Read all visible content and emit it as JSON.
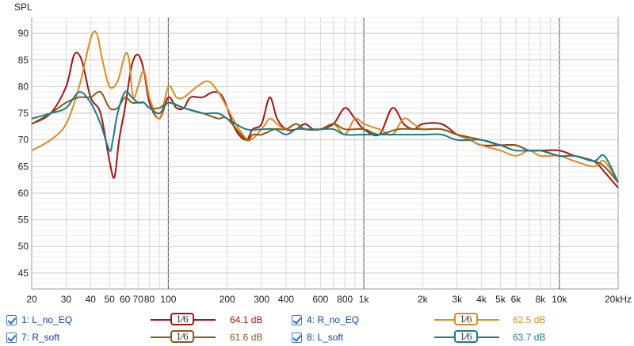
{
  "chart_data": {
    "type": "line",
    "title": "",
    "ylabel": "SPL",
    "xlabel": "",
    "x_scale": "log",
    "xlim": [
      20,
      20000
    ],
    "ylim": [
      42,
      93
    ],
    "grid": true,
    "xticks": [
      {
        "v": 20,
        "l": "20"
      },
      {
        "v": 30,
        "l": "30"
      },
      {
        "v": 40,
        "l": "40"
      },
      {
        "v": 50,
        "l": "50"
      },
      {
        "v": 60,
        "l": "60"
      },
      {
        "v": 70,
        "l": "70"
      },
      {
        "v": 80,
        "l": "80"
      },
      {
        "v": 100,
        "l": "100"
      },
      {
        "v": 200,
        "l": "200"
      },
      {
        "v": 300,
        "l": "300"
      },
      {
        "v": 400,
        "l": "400"
      },
      {
        "v": 600,
        "l": "600"
      },
      {
        "v": 800,
        "l": "800"
      },
      {
        "v": 1000,
        "l": "1k"
      },
      {
        "v": 2000,
        "l": "2k"
      },
      {
        "v": 3000,
        "l": "3k"
      },
      {
        "v": 4000,
        "l": "4k"
      },
      {
        "v": 5000,
        "l": "5k"
      },
      {
        "v": 6000,
        "l": "6k"
      },
      {
        "v": 8000,
        "l": "8k"
      },
      {
        "v": 10000,
        "l": "10k"
      },
      {
        "v": 20000,
        "l": "20kHz"
      }
    ],
    "yticks": [
      45,
      50,
      55,
      60,
      65,
      70,
      75,
      80,
      85,
      90
    ],
    "series": [
      {
        "name": "L_no_EQ",
        "color": "#a31515",
        "x": [
          20,
          25,
          30,
          33,
          36,
          40,
          45,
          50,
          53,
          56,
          60,
          65,
          70,
          75,
          80,
          90,
          100,
          110,
          120,
          130,
          150,
          170,
          190,
          220,
          250,
          270,
          300,
          330,
          360,
          400,
          450,
          500,
          550,
          600,
          700,
          800,
          900,
          1000,
          1200,
          1400,
          1600,
          1800,
          2000,
          2500,
          3000,
          3500,
          4000,
          5000,
          6000,
          7000,
          8000,
          10000,
          12000,
          15000,
          17000,
          20000
        ],
        "y": [
          73,
          75,
          80,
          86,
          85,
          78,
          75,
          66,
          63,
          70,
          76,
          84,
          86,
          83,
          77,
          74,
          78,
          76,
          76,
          78,
          78,
          79,
          78,
          72,
          70,
          72,
          73,
          78,
          74,
          72,
          72,
          73,
          72,
          72,
          73,
          76,
          74,
          72,
          71,
          76,
          73,
          72,
          73,
          73,
          71,
          70,
          69,
          69,
          69,
          68,
          68,
          68,
          67,
          66,
          64,
          61
        ]
      },
      {
        "name": "R_no_EQ",
        "color": "#e08a20",
        "x": [
          20,
          25,
          30,
          35,
          40,
          43,
          46,
          50,
          55,
          60,
          63,
          66,
          70,
          75,
          80,
          90,
          100,
          110,
          120,
          140,
          160,
          180,
          200,
          230,
          260,
          300,
          330,
          360,
          400,
          450,
          500,
          600,
          700,
          800,
          900,
          1000,
          1200,
          1400,
          1600,
          1800,
          2000,
          2500,
          3000,
          4000,
          5000,
          6000,
          7000,
          8000,
          10000,
          12000,
          15000,
          17000,
          20000
        ],
        "y": [
          68,
          70,
          73,
          80,
          89,
          90,
          85,
          80,
          81,
          86,
          85,
          78,
          80,
          83,
          78,
          74,
          80,
          78,
          78,
          80,
          81,
          79,
          76,
          72,
          70,
          72,
          74,
          73,
          72,
          73,
          72,
          72,
          73,
          71,
          74,
          73,
          72,
          71,
          74,
          73,
          72,
          72,
          71,
          69,
          68,
          67,
          68,
          67,
          67,
          66,
          65,
          66,
          62
        ]
      },
      {
        "name": "R_soft",
        "color": "#8a5a16",
        "x": [
          20,
          25,
          30,
          35,
          40,
          45,
          50,
          55,
          60,
          65,
          70,
          75,
          80,
          90,
          100,
          120,
          150,
          180,
          200,
          250,
          270,
          300,
          350,
          400,
          450,
          500,
          600,
          700,
          800,
          1000,
          1200,
          1500,
          2000,
          2500,
          3000,
          4000,
          5000,
          6000,
          7000,
          8000,
          10000,
          12000,
          15000,
          17000,
          20000
        ],
        "y": [
          73,
          75,
          77,
          78,
          78,
          79,
          76,
          76,
          78,
          77,
          77,
          77,
          76,
          76,
          77,
          76,
          75,
          74,
          74,
          70,
          71,
          71,
          72,
          72,
          73,
          72,
          72,
          73,
          72,
          72,
          71,
          72,
          72,
          72,
          71,
          70,
          69,
          69,
          68,
          68,
          67,
          67,
          66,
          65,
          62
        ]
      },
      {
        "name": "L_soft",
        "color": "#1a7d8a",
        "x": [
          20,
          25,
          30,
          35,
          40,
          45,
          50,
          52,
          55,
          60,
          65,
          70,
          75,
          80,
          90,
          100,
          120,
          150,
          180,
          200,
          250,
          300,
          350,
          400,
          450,
          500,
          600,
          700,
          800,
          1000,
          1200,
          1500,
          2000,
          2500,
          3000,
          4000,
          5000,
          6000,
          8000,
          10000,
          12000,
          15000,
          17000,
          20000
        ],
        "y": [
          74,
          75,
          76,
          79,
          77,
          73,
          68,
          70,
          75,
          79,
          78,
          77,
          77,
          76,
          75,
          77,
          76,
          75,
          75,
          74,
          72,
          72,
          72,
          71,
          72,
          72,
          72,
          72,
          71,
          71,
          71,
          71,
          71,
          71,
          70,
          70,
          69,
          68,
          68,
          67,
          67,
          66,
          67,
          62
        ]
      }
    ]
  },
  "legend": [
    {
      "label": "1: L_no_EQ",
      "smoothing": "1⁄6",
      "value": "64.1 dB",
      "color": "#a31515"
    },
    {
      "label": "4: R_no_EQ",
      "smoothing": "1⁄6",
      "value": "62.5 dB",
      "color": "#e08a20"
    },
    {
      "label": "7: R_soft",
      "smoothing": "1⁄6",
      "value": "61.6 dB",
      "color": "#8a5a16"
    },
    {
      "label": "8: L_soft",
      "smoothing": "1⁄6",
      "value": "63.7 dB",
      "color": "#1a7d8a"
    }
  ]
}
